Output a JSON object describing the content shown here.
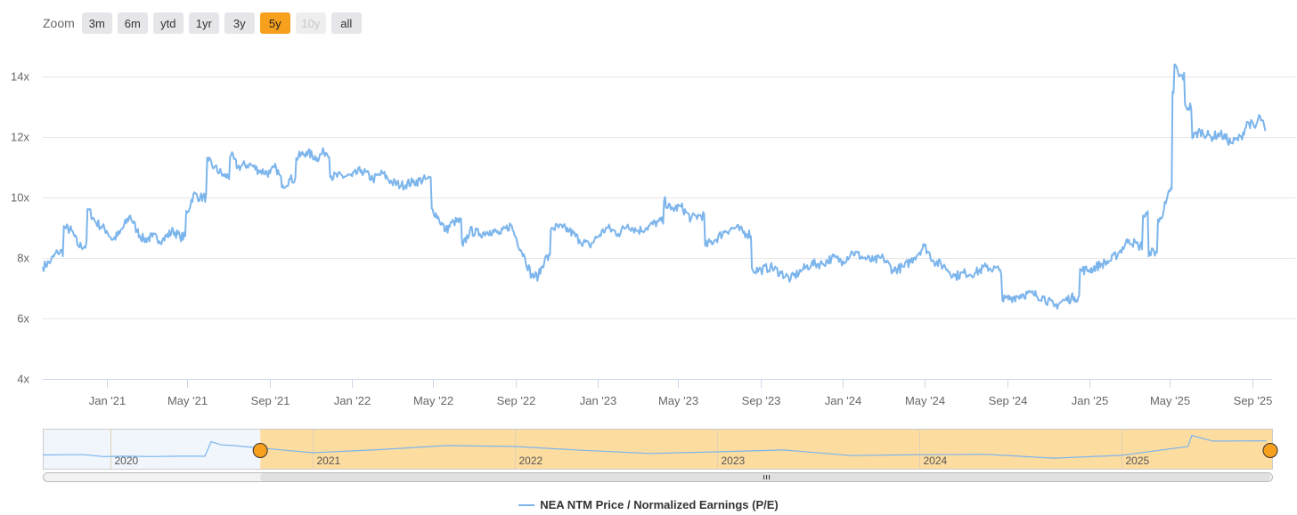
{
  "zoom": {
    "label": "Zoom",
    "buttons": [
      {
        "label": "3m",
        "state": "normal"
      },
      {
        "label": "6m",
        "state": "normal"
      },
      {
        "label": "ytd",
        "state": "normal"
      },
      {
        "label": "1yr",
        "state": "normal"
      },
      {
        "label": "3y",
        "state": "normal"
      },
      {
        "label": "5y",
        "state": "active"
      },
      {
        "label": "10y",
        "state": "disabled"
      },
      {
        "label": "all",
        "state": "normal"
      }
    ]
  },
  "colors": {
    "series": "#7cb5ec",
    "active_button": "#f7a01d",
    "navigator_mask": "#fddca0",
    "grid": "#e6e6e6"
  },
  "chart_data": {
    "type": "line",
    "title": "",
    "xlabel": "",
    "ylabel": "",
    "y_unit_suffix": "x",
    "x_range": [
      "2020-09-28",
      "2025-09-30"
    ],
    "ylim": [
      4,
      15
    ],
    "y_ticks": [
      4,
      6,
      8,
      10,
      12,
      14
    ],
    "x_ticks": [
      {
        "date": "2021-01-01",
        "label": "Jan '21"
      },
      {
        "date": "2021-05-01",
        "label": "May '21"
      },
      {
        "date": "2021-09-01",
        "label": "Sep '21"
      },
      {
        "date": "2022-01-01",
        "label": "Jan '22"
      },
      {
        "date": "2022-05-01",
        "label": "May '22"
      },
      {
        "date": "2022-09-01",
        "label": "Sep '22"
      },
      {
        "date": "2023-01-01",
        "label": "Jan '23"
      },
      {
        "date": "2023-05-01",
        "label": "May '23"
      },
      {
        "date": "2023-09-01",
        "label": "Sep '23"
      },
      {
        "date": "2024-01-01",
        "label": "Jan '24"
      },
      {
        "date": "2024-05-01",
        "label": "May '24"
      },
      {
        "date": "2024-09-01",
        "label": "Sep '24"
      },
      {
        "date": "2025-01-01",
        "label": "Jan '25"
      },
      {
        "date": "2025-05-01",
        "label": "May '25"
      },
      {
        "date": "2025-09-01",
        "label": "Sep '25"
      }
    ],
    "grid": true,
    "legend_position": "bottom-center",
    "series": [
      {
        "name": "NEA NTM Price / Normalized Earnings (P/E)",
        "points": [
          [
            "2020-09-28",
            7.7
          ],
          [
            "2020-10-10",
            7.9
          ],
          [
            "2020-10-20",
            8.2
          ],
          [
            "2020-10-31",
            9.0
          ],
          [
            "2020-11-10",
            8.9
          ],
          [
            "2020-11-20",
            8.4
          ],
          [
            "2020-12-05",
            9.6
          ],
          [
            "2020-12-15",
            9.2
          ],
          [
            "2021-01-01",
            8.9
          ],
          [
            "2021-01-10",
            8.6
          ],
          [
            "2021-01-20",
            8.8
          ],
          [
            "2021-02-05",
            9.4
          ],
          [
            "2021-02-15",
            8.9
          ],
          [
            "2021-02-25",
            8.6
          ],
          [
            "2021-03-10",
            8.7
          ],
          [
            "2021-03-25",
            8.6
          ],
          [
            "2021-04-10",
            8.9
          ],
          [
            "2021-04-20",
            8.7
          ],
          [
            "2021-05-01",
            9.5
          ],
          [
            "2021-05-10",
            10.1
          ],
          [
            "2021-05-20",
            10.0
          ],
          [
            "2021-06-01",
            11.2
          ],
          [
            "2021-06-10",
            11.0
          ],
          [
            "2021-06-25",
            10.7
          ],
          [
            "2021-07-05",
            11.4
          ],
          [
            "2021-07-15",
            11.0
          ],
          [
            "2021-08-01",
            11.1
          ],
          [
            "2021-08-15",
            10.9
          ],
          [
            "2021-09-01",
            10.8
          ],
          [
            "2021-09-10",
            11.0
          ],
          [
            "2021-09-20",
            10.4
          ],
          [
            "2021-10-01",
            10.6
          ],
          [
            "2021-10-10",
            11.3
          ],
          [
            "2021-10-25",
            11.5
          ],
          [
            "2021-11-10",
            11.3
          ],
          [
            "2021-11-20",
            11.5
          ],
          [
            "2021-12-01",
            10.7
          ],
          [
            "2022-01-01",
            10.7
          ],
          [
            "2022-01-15",
            10.9
          ],
          [
            "2022-02-01",
            10.6
          ],
          [
            "2022-02-15",
            10.8
          ],
          [
            "2022-03-01",
            10.5
          ],
          [
            "2022-03-15",
            10.4
          ],
          [
            "2022-04-01",
            10.5
          ],
          [
            "2022-04-20",
            10.6
          ],
          [
            "2022-05-01",
            9.6
          ],
          [
            "2022-05-10",
            9.3
          ],
          [
            "2022-05-20",
            8.9
          ],
          [
            "2022-06-01",
            9.2
          ],
          [
            "2022-06-15",
            8.4
          ],
          [
            "2022-06-25",
            8.9
          ],
          [
            "2022-07-10",
            8.8
          ],
          [
            "2022-07-25",
            8.9
          ],
          [
            "2022-08-10",
            8.8
          ],
          [
            "2022-08-25",
            9.1
          ],
          [
            "2022-09-01",
            8.7
          ],
          [
            "2022-09-15",
            8.0
          ],
          [
            "2022-09-25",
            7.4
          ],
          [
            "2022-10-05",
            7.4
          ],
          [
            "2022-10-15",
            8.0
          ],
          [
            "2022-10-25",
            9.0
          ],
          [
            "2022-11-10",
            9.0
          ],
          [
            "2022-11-20",
            8.9
          ],
          [
            "2022-12-05",
            8.6
          ],
          [
            "2022-12-20",
            8.4
          ],
          [
            "2023-01-01",
            8.7
          ],
          [
            "2023-01-15",
            9.0
          ],
          [
            "2023-02-01",
            8.8
          ],
          [
            "2023-02-15",
            9.1
          ],
          [
            "2023-03-01",
            8.9
          ],
          [
            "2023-03-15",
            9.0
          ],
          [
            "2023-04-01",
            9.2
          ],
          [
            "2023-04-10",
            9.9
          ],
          [
            "2023-04-20",
            9.6
          ],
          [
            "2023-05-05",
            9.7
          ],
          [
            "2023-05-20",
            9.3
          ],
          [
            "2023-06-01",
            9.4
          ],
          [
            "2023-06-10",
            8.4
          ],
          [
            "2023-06-25",
            8.6
          ],
          [
            "2023-07-10",
            8.9
          ],
          [
            "2023-07-25",
            9.0
          ],
          [
            "2023-08-10",
            8.8
          ],
          [
            "2023-08-20",
            7.6
          ],
          [
            "2023-09-01",
            7.6
          ],
          [
            "2023-09-15",
            7.7
          ],
          [
            "2023-10-01",
            7.5
          ],
          [
            "2023-10-15",
            7.3
          ],
          [
            "2023-11-01",
            7.6
          ],
          [
            "2023-11-15",
            7.8
          ],
          [
            "2023-12-01",
            7.8
          ],
          [
            "2023-12-15",
            8.0
          ],
          [
            "2024-01-01",
            7.9
          ],
          [
            "2024-01-15",
            8.2
          ],
          [
            "2024-02-01",
            8.0
          ],
          [
            "2024-02-15",
            7.9
          ],
          [
            "2024-03-01",
            8.0
          ],
          [
            "2024-03-15",
            7.6
          ],
          [
            "2024-04-01",
            7.7
          ],
          [
            "2024-04-15",
            8.0
          ],
          [
            "2024-05-01",
            8.4
          ],
          [
            "2024-05-15",
            7.9
          ],
          [
            "2024-06-01",
            7.7
          ],
          [
            "2024-06-15",
            7.4
          ],
          [
            "2024-07-01",
            7.5
          ],
          [
            "2024-07-15",
            7.5
          ],
          [
            "2024-08-01",
            7.7
          ],
          [
            "2024-08-20",
            7.6
          ],
          [
            "2024-08-25",
            6.6
          ],
          [
            "2024-09-10",
            6.7
          ],
          [
            "2024-09-25",
            6.8
          ],
          [
            "2024-10-10",
            6.8
          ],
          [
            "2024-10-25",
            6.7
          ],
          [
            "2024-11-10",
            6.4
          ],
          [
            "2024-11-25",
            6.6
          ],
          [
            "2024-12-10",
            6.7
          ],
          [
            "2024-12-20",
            7.6
          ],
          [
            "2025-01-01",
            7.6
          ],
          [
            "2025-01-20",
            7.8
          ],
          [
            "2025-02-01",
            7.9
          ],
          [
            "2025-02-15",
            8.2
          ],
          [
            "2025-03-01",
            8.6
          ],
          [
            "2025-03-15",
            8.4
          ],
          [
            "2025-03-22",
            9.4
          ],
          [
            "2025-04-01",
            8.2
          ],
          [
            "2025-04-15",
            9.2
          ],
          [
            "2025-04-25",
            9.8
          ],
          [
            "2025-05-01",
            10.2
          ],
          [
            "2025-05-05",
            13.5
          ],
          [
            "2025-05-08",
            14.4
          ],
          [
            "2025-05-15",
            14.0
          ],
          [
            "2025-05-25",
            13.0
          ],
          [
            "2025-06-05",
            12.0
          ],
          [
            "2025-06-15",
            12.2
          ],
          [
            "2025-07-01",
            12.0
          ],
          [
            "2025-07-15",
            12.1
          ],
          [
            "2025-08-01",
            11.8
          ],
          [
            "2025-08-15",
            12.0
          ],
          [
            "2025-08-25",
            12.5
          ],
          [
            "2025-09-05",
            12.3
          ],
          [
            "2025-09-12",
            12.7
          ],
          [
            "2025-09-20",
            12.2
          ]
        ]
      }
    ],
    "navigator": {
      "x_range": [
        "2019-09-01",
        "2025-09-30"
      ],
      "year_labels": [
        {
          "date": "2020-01-01",
          "label": "2020"
        },
        {
          "date": "2021-01-01",
          "label": "2021"
        },
        {
          "date": "2022-01-01",
          "label": "2022"
        },
        {
          "date": "2023-01-01",
          "label": "2023"
        },
        {
          "date": "2024-01-01",
          "label": "2024"
        },
        {
          "date": "2025-01-01",
          "label": "2025"
        }
      ],
      "selection": [
        "2020-09-28",
        "2025-09-30"
      ],
      "series": [
        [
          "2019-09-01",
          7.8
        ],
        [
          "2019-10-15",
          7.9
        ],
        [
          "2019-11-15",
          7.9
        ],
        [
          "2019-12-20",
          7.3
        ],
        [
          "2020-02-01",
          7.4
        ],
        [
          "2020-03-15",
          7.3
        ],
        [
          "2020-05-01",
          7.4
        ],
        [
          "2020-06-20",
          7.4
        ],
        [
          "2020-07-01",
          12.0
        ],
        [
          "2020-07-20",
          11.0
        ],
        [
          "2020-08-10",
          10.8
        ],
        [
          "2020-09-15",
          10.2
        ],
        [
          "2020-09-28",
          10.0
        ],
        [
          "2021-01-01",
          8.5
        ],
        [
          "2021-05-01",
          9.5
        ],
        [
          "2021-09-01",
          10.8
        ],
        [
          "2022-01-01",
          10.5
        ],
        [
          "2022-05-01",
          9.3
        ],
        [
          "2022-09-01",
          8.3
        ],
        [
          "2023-01-01",
          8.8
        ],
        [
          "2023-05-01",
          9.4
        ],
        [
          "2023-09-01",
          7.6
        ],
        [
          "2024-01-01",
          7.9
        ],
        [
          "2024-05-01",
          8.0
        ],
        [
          "2024-09-01",
          6.8
        ],
        [
          "2025-01-01",
          7.7
        ],
        [
          "2025-05-01",
          10.5
        ],
        [
          "2025-05-08",
          14.0
        ],
        [
          "2025-06-15",
          12.2
        ],
        [
          "2025-09-20",
          12.3
        ]
      ]
    }
  }
}
